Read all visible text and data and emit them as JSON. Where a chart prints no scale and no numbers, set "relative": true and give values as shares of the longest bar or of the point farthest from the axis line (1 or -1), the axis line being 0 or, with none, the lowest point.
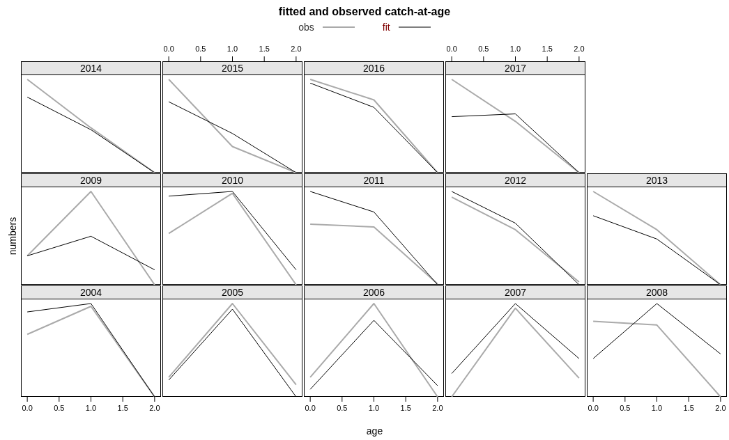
{
  "chart_data": [
    {
      "type": "line",
      "title": "2014",
      "annotations": [
        "fitted and observed catch-at-age"
      ],
      "legend": "top",
      "relative": true,
      "categories": [
        null,
        null,
        null
      ],
      "series": [
        {
          "name": "obs",
          "color": "#aaaaaa",
          "values": [
            1,
            0.48,
            0
          ]
        },
        {
          "name": "fit",
          "color": "#000000",
          "values": [
            0.81,
            0.46,
            0
          ]
        }
      ]
    },
    {
      "type": "line",
      "title": "2015",
      "relative": true,
      "x": [
        0,
        1,
        2
      ],
      "xlim": [
        -0.1,
        2.1
      ],
      "xticks": [
        {
          "value": 0,
          "label": "0.0"
        },
        {
          "value": 0.5,
          "label": "0.5"
        },
        {
          "value": 1,
          "label": "1.0"
        },
        {
          "value": 1.5,
          "label": "1.5"
        },
        {
          "value": 2,
          "label": "2.0"
        }
      ],
      "series": [
        {
          "color": "#aaaaaa",
          "values": [
            1,
            0.28,
            0
          ]
        },
        {
          "color": "#000000",
          "values": [
            0.76,
            0.42,
            0
          ]
        }
      ]
    },
    {
      "type": "line",
      "title": "2016",
      "relative": true,
      "categories": [
        null,
        null,
        null
      ],
      "series": [
        {
          "color": "#aaaaaa",
          "values": [
            1,
            0.78,
            0
          ]
        },
        {
          "color": "#000000",
          "values": [
            0.96,
            0.7,
            0
          ]
        }
      ]
    },
    {
      "type": "line",
      "title": "2017",
      "relative": true,
      "x": [
        0,
        1,
        2
      ],
      "xlim": [
        -0.1,
        2.1
      ],
      "xticks": [
        {
          "value": 0,
          "label": "0.0"
        },
        {
          "value": 0.5,
          "label": "0.5"
        },
        {
          "value": 1,
          "label": "1.0"
        },
        {
          "value": 1.5,
          "label": "1.5"
        },
        {
          "value": 2,
          "label": "2.0"
        }
      ],
      "series": [
        {
          "color": "#aaaaaa",
          "values": [
            1,
            0.55,
            0
          ]
        },
        {
          "color": "#000000",
          "values": [
            0.6,
            0.63,
            0
          ]
        }
      ]
    },
    {
      "type": "line",
      "title": "2009",
      "ylabel": "numbers",
      "relative": true,
      "categories": [
        null,
        null,
        null
      ],
      "series": [
        {
          "color": "#aaaaaa",
          "values": [
            0.31,
            1,
            0
          ]
        },
        {
          "color": "#000000",
          "values": [
            0.31,
            0.52,
            0.16
          ]
        }
      ]
    },
    {
      "type": "line",
      "title": "2010",
      "relative": true,
      "categories": [
        null,
        null,
        null
      ],
      "series": [
        {
          "color": "#aaaaaa",
          "values": [
            0.55,
            0.98,
            0
          ]
        },
        {
          "color": "#000000",
          "values": [
            0.95,
            1,
            0.16
          ]
        }
      ]
    },
    {
      "type": "line",
      "title": "2011",
      "relative": true,
      "categories": [
        null,
        null,
        null
      ],
      "series": [
        {
          "color": "#aaaaaa",
          "values": [
            0.65,
            0.62,
            0.01
          ]
        },
        {
          "color": "#000000",
          "values": [
            1,
            0.78,
            0
          ]
        }
      ]
    },
    {
      "type": "line",
      "title": "2012",
      "relative": true,
      "categories": [
        null,
        null,
        null
      ],
      "series": [
        {
          "color": "#aaaaaa",
          "values": [
            0.94,
            0.59,
            0.03
          ]
        },
        {
          "color": "#000000",
          "values": [
            1,
            0.66,
            0
          ]
        }
      ]
    },
    {
      "type": "line",
      "title": "2013",
      "relative": true,
      "categories": [
        null,
        null,
        null
      ],
      "series": [
        {
          "color": "#aaaaaa",
          "values": [
            1,
            0.59,
            0
          ]
        },
        {
          "color": "#000000",
          "values": [
            0.74,
            0.49,
            0
          ]
        }
      ]
    },
    {
      "type": "line",
      "title": "2004",
      "relative": true,
      "x": [
        0,
        1,
        2
      ],
      "xlim": [
        -0.1,
        2.1
      ],
      "xticks": [
        {
          "value": 0,
          "label": "0.0"
        },
        {
          "value": 0.5,
          "label": "0.5"
        },
        {
          "value": 1,
          "label": "1.0"
        },
        {
          "value": 1.5,
          "label": "1.5"
        },
        {
          "value": 2,
          "label": "2.0"
        }
      ],
      "series": [
        {
          "color": "#aaaaaa",
          "values": [
            0.67,
            0.97,
            0
          ]
        },
        {
          "color": "#000000",
          "values": [
            0.91,
            1,
            0
          ]
        }
      ]
    },
    {
      "type": "line",
      "title": "2005",
      "relative": true,
      "categories": [
        null,
        null,
        null
      ],
      "series": [
        {
          "color": "#aaaaaa",
          "values": [
            0.21,
            1,
            0.13
          ]
        },
        {
          "color": "#000000",
          "values": [
            0.18,
            0.94,
            0
          ]
        }
      ]
    },
    {
      "type": "line",
      "title": "2006",
      "xlabel": "age",
      "relative": true,
      "x": [
        0,
        1,
        2
      ],
      "xlim": [
        -0.1,
        2.1
      ],
      "xticks": [
        {
          "value": 0,
          "label": "0.0"
        },
        {
          "value": 0.5,
          "label": "0.5"
        },
        {
          "value": 1,
          "label": "1.0"
        },
        {
          "value": 1.5,
          "label": "1.5"
        },
        {
          "value": 2,
          "label": "2.0"
        }
      ],
      "series": [
        {
          "color": "#aaaaaa",
          "values": [
            0.21,
            1,
            0
          ]
        },
        {
          "color": "#000000",
          "values": [
            0.08,
            0.82,
            0.12
          ]
        }
      ]
    },
    {
      "type": "line",
      "title": "2007",
      "relative": true,
      "categories": [
        null,
        null,
        null
      ],
      "series": [
        {
          "color": "#aaaaaa",
          "values": [
            0,
            0.95,
            0.2
          ]
        },
        {
          "color": "#000000",
          "values": [
            0.25,
            1,
            0.41
          ]
        }
      ]
    },
    {
      "type": "line",
      "title": "2008",
      "relative": true,
      "x": [
        0,
        1,
        2
      ],
      "xlim": [
        -0.1,
        2.1
      ],
      "xticks": [
        {
          "value": 0,
          "label": "0.0"
        },
        {
          "value": 0.5,
          "label": "0.5"
        },
        {
          "value": 1,
          "label": "1.0"
        },
        {
          "value": 1.5,
          "label": "1.5"
        },
        {
          "value": 2,
          "label": "2.0"
        }
      ],
      "series": [
        {
          "color": "#aaaaaa",
          "values": [
            0.81,
            0.77,
            0
          ]
        },
        {
          "color": "#000000",
          "values": [
            0.41,
            1,
            0.46
          ]
        }
      ]
    }
  ]
}
